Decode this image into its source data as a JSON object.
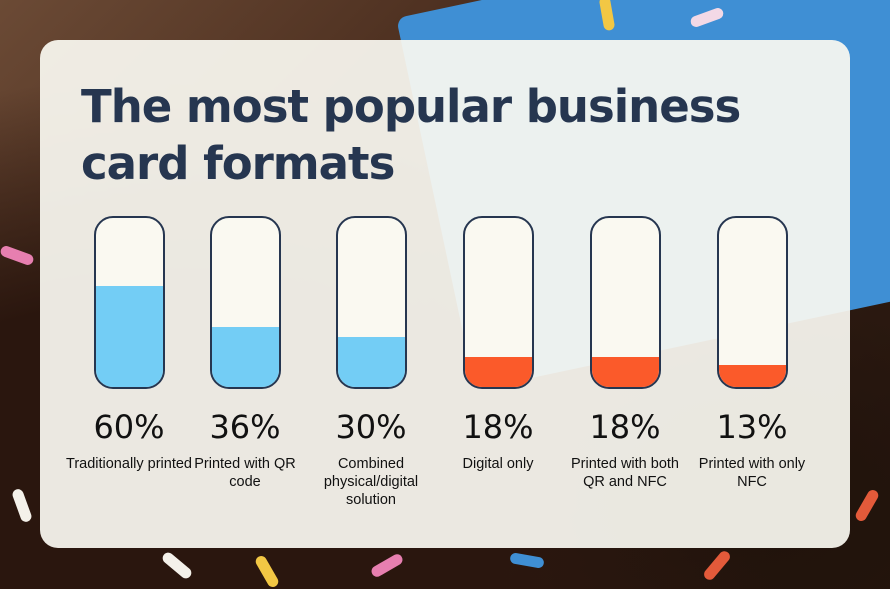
{
  "title": "The most popular business card formats",
  "colors": {
    "title": "#263650",
    "high": "#73cdf5",
    "low": "#fb5a2a",
    "tube_border": "#263650",
    "panel": "#faf9f1"
  },
  "chart_data": {
    "type": "bar",
    "title": "The most popular business card formats",
    "categories": [
      "Traditionally printed",
      "Printed with QR code",
      "Combined physical/digital solution",
      "Digital only",
      "Printed with both QR and NFC",
      "Printed with only NFC"
    ],
    "values": [
      60,
      36,
      30,
      18,
      18,
      13
    ],
    "value_labels": [
      "60%",
      "36%",
      "30%",
      "18%",
      "18%",
      "13%"
    ],
    "bar_colors": [
      "#73cdf5",
      "#73cdf5",
      "#73cdf5",
      "#fb5a2a",
      "#fb5a2a",
      "#fb5a2a"
    ],
    "ylim": [
      0,
      100
    ],
    "grid": false,
    "legend": "none"
  }
}
